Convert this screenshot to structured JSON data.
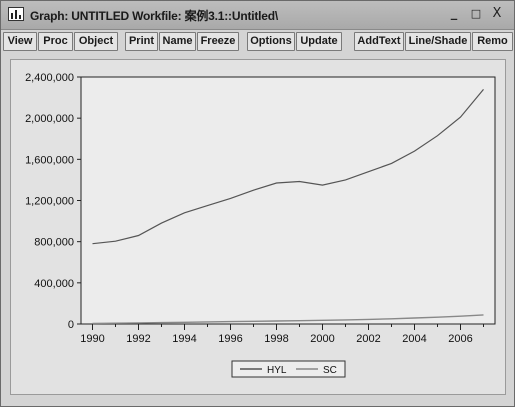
{
  "window": {
    "title": "Graph: UNTITLED   Workfile: 案例3.1::Untitled\\",
    "minimize_label": "_",
    "maximize_label": "□",
    "close_label": "X"
  },
  "toolbar": {
    "buttons": [
      "View",
      "Proc",
      "Object",
      "Print",
      "Name",
      "Freeze",
      "Options",
      "Update",
      "AddText",
      "Line/Shade",
      "Remo"
    ]
  },
  "chart_data": {
    "type": "line",
    "title": "",
    "xlabel": "",
    "ylabel": "",
    "x": [
      1990,
      1991,
      1992,
      1993,
      1994,
      1995,
      1996,
      1997,
      1998,
      1999,
      2000,
      2001,
      2002,
      2003,
      2004,
      2005,
      2006,
      2007
    ],
    "xlim": [
      1989.5,
      2007.5
    ],
    "ylim": [
      0,
      2400000
    ],
    "x_ticks": [
      "1990",
      "1992",
      "1994",
      "1996",
      "1998",
      "2000",
      "2002",
      "2004",
      "2006"
    ],
    "y_ticks": [
      "0",
      "400,000",
      "800,000",
      "1,200,000",
      "1,600,000",
      "2,000,000",
      "2,400,000"
    ],
    "grid": false,
    "legend_position": "bottom-center",
    "series": [
      {
        "name": "HYL",
        "color": "#555555",
        "values": [
          780000,
          805000,
          860000,
          980000,
          1080000,
          1150000,
          1220000,
          1300000,
          1370000,
          1385000,
          1350000,
          1400000,
          1480000,
          1560000,
          1680000,
          1830000,
          2010000,
          2280000
        ]
      },
      {
        "name": "SC",
        "color": "#888888",
        "values": [
          6000,
          8000,
          11000,
          14000,
          17000,
          20000,
          23000,
          26000,
          29000,
          32000,
          36000,
          40000,
          45000,
          51000,
          58000,
          66000,
          76000,
          88000
        ]
      }
    ]
  }
}
